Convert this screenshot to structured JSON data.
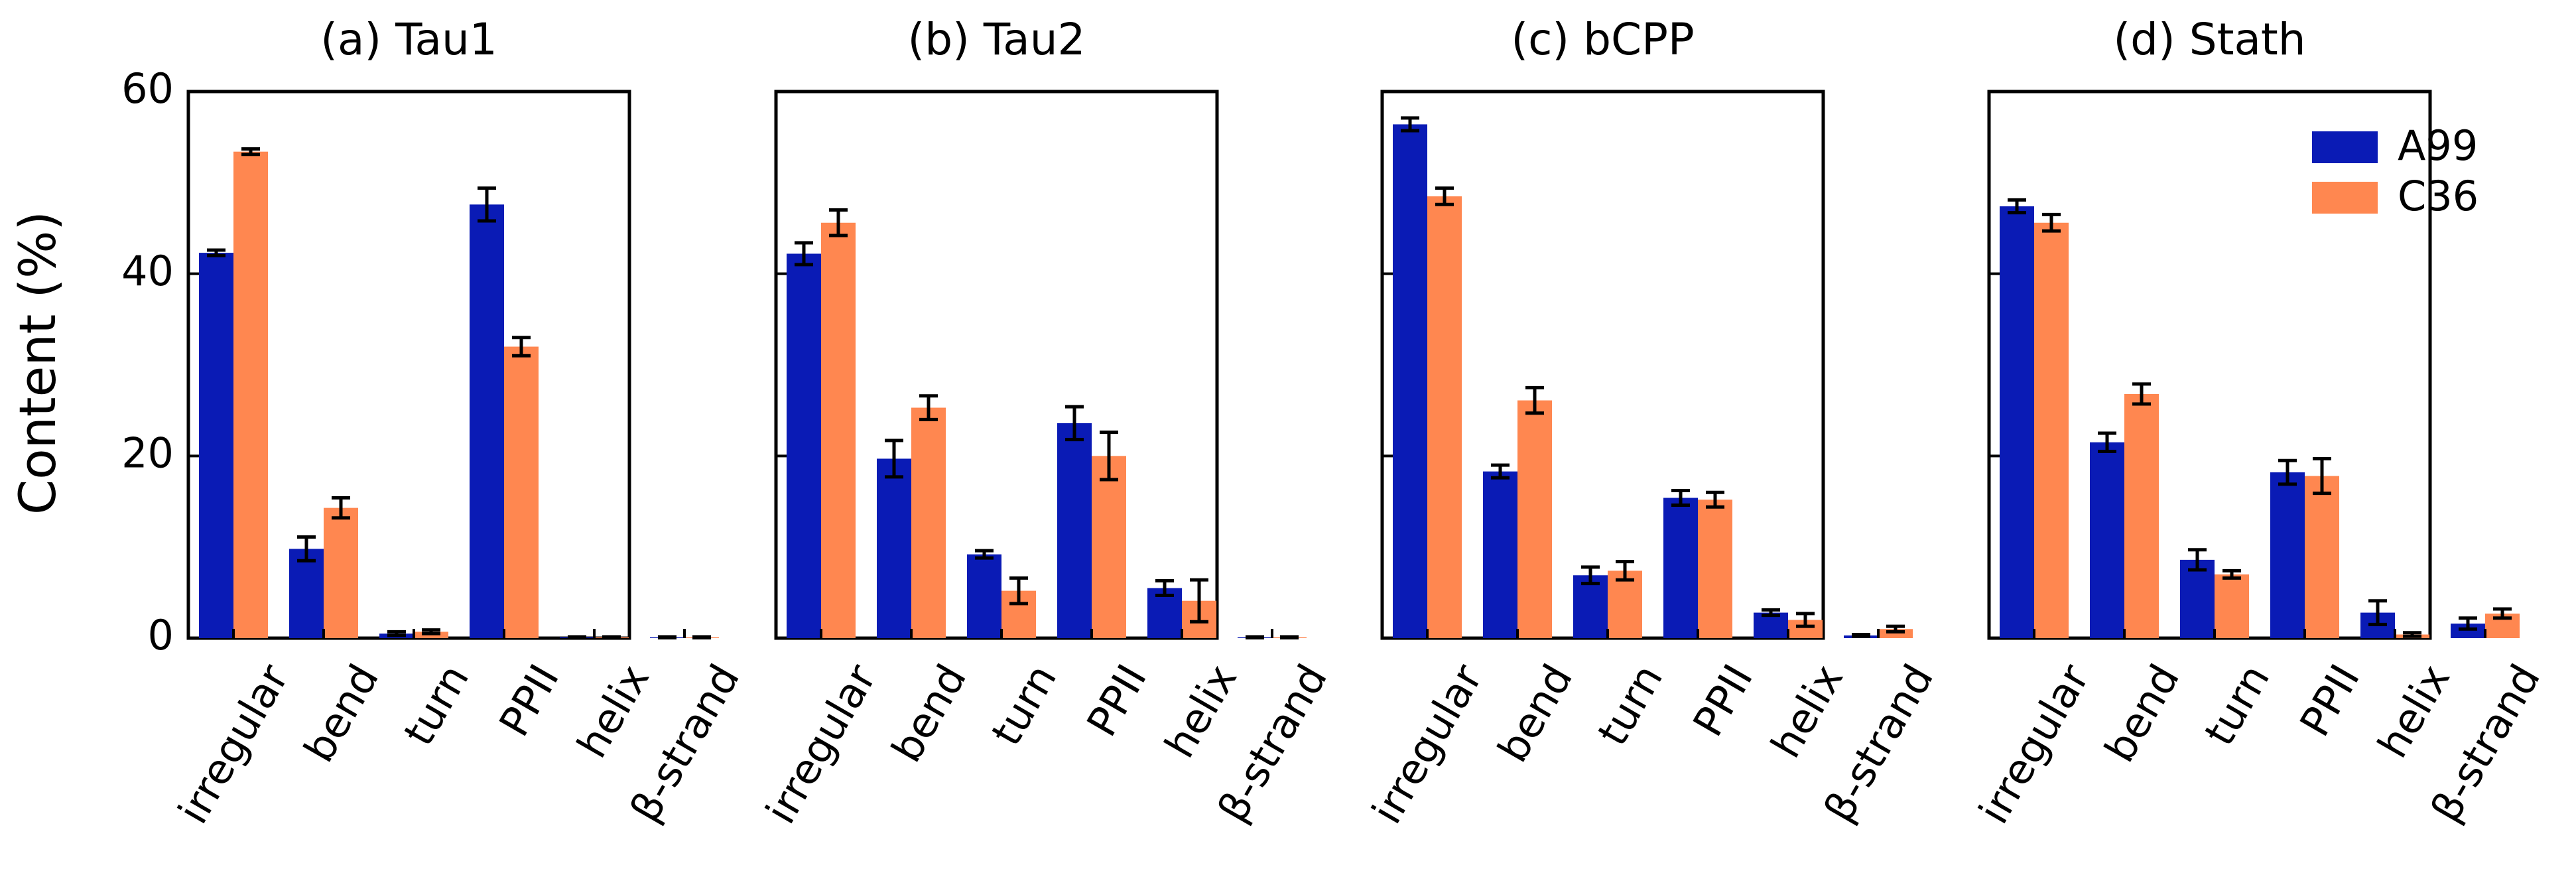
{
  "chart_data": {
    "type": "bar",
    "ylabel": "Content (%)",
    "ylim": [
      0,
      60
    ],
    "yticks": [
      0,
      20,
      40,
      60
    ],
    "categories": [
      "irregular",
      "bend",
      "turn",
      "PPII",
      "helix",
      "β-strand"
    ],
    "legend": {
      "position": "top-right",
      "entries": [
        "A99",
        "C36"
      ]
    },
    "colors": {
      "A99": "#0a1bb5",
      "C36": "#ff8750",
      "error": "#000000",
      "frame": "#000000"
    },
    "panels": [
      {
        "title": "(a) Tau1",
        "series": [
          {
            "name": "A99",
            "values": [
              42.3,
              9.8,
              0.5,
              47.6,
              0.1,
              0.1
            ],
            "errors": [
              0.3,
              1.3,
              0.2,
              1.8,
              0.05,
              0.05
            ]
          },
          {
            "name": "C36",
            "values": [
              53.4,
              14.3,
              0.7,
              32.0,
              0.1,
              0.1
            ],
            "errors": [
              0.3,
              1.1,
              0.2,
              1.0,
              0.05,
              0.05
            ]
          }
        ]
      },
      {
        "title": "(b) Tau2",
        "series": [
          {
            "name": "A99",
            "values": [
              42.2,
              19.7,
              9.2,
              23.6,
              5.5,
              0.1
            ],
            "errors": [
              1.2,
              2.0,
              0.4,
              1.8,
              0.8,
              0.05
            ]
          },
          {
            "name": "C36",
            "values": [
              45.6,
              25.3,
              5.2,
              20.0,
              4.1,
              0.1
            ],
            "errors": [
              1.4,
              1.3,
              1.4,
              2.6,
              2.3,
              0.05
            ]
          }
        ]
      },
      {
        "title": "(c) bCPP",
        "series": [
          {
            "name": "A99",
            "values": [
              56.4,
              18.3,
              6.9,
              15.4,
              2.8,
              0.3
            ],
            "errors": [
              0.7,
              0.7,
              0.9,
              0.8,
              0.3,
              0.1
            ]
          },
          {
            "name": "C36",
            "values": [
              48.5,
              26.1,
              7.4,
              15.2,
              2.0,
              1.0
            ],
            "errors": [
              0.9,
              1.4,
              1.0,
              0.8,
              0.7,
              0.3
            ]
          }
        ]
      },
      {
        "title": "(d) Stath",
        "series": [
          {
            "name": "A99",
            "values": [
              47.4,
              21.5,
              8.6,
              18.2,
              2.8,
              1.6
            ],
            "errors": [
              0.7,
              1.0,
              1.1,
              1.3,
              1.3,
              0.6
            ]
          },
          {
            "name": "C36",
            "values": [
              45.6,
              26.8,
              7.0,
              17.8,
              0.4,
              2.7
            ],
            "errors": [
              0.9,
              1.1,
              0.4,
              1.9,
              0.2,
              0.5
            ]
          }
        ]
      }
    ]
  }
}
